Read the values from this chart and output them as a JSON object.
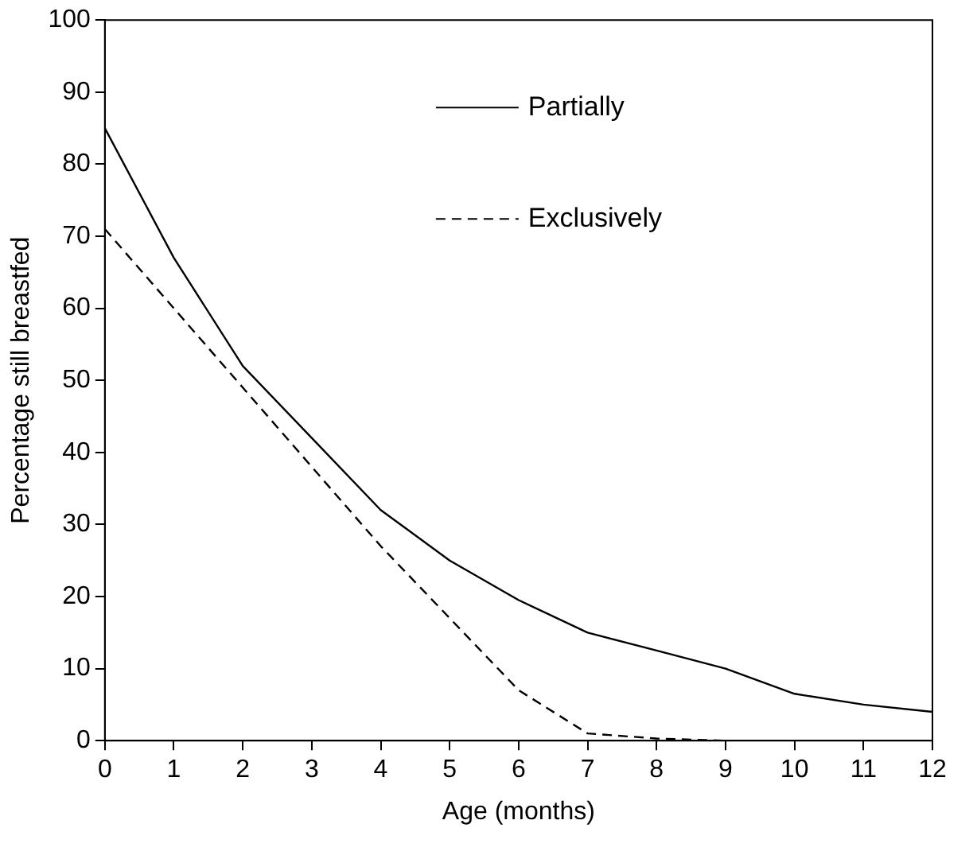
{
  "chart_data": {
    "type": "line",
    "xlabel": "Age (months)",
    "ylabel": "Percentage still breastfed",
    "x": [
      0,
      1,
      2,
      3,
      4,
      5,
      6,
      7,
      8,
      9,
      10,
      11,
      12
    ],
    "series": [
      {
        "name": "Partially",
        "color": "#000000",
        "line_style": "solid",
        "values": [
          85,
          67,
          52,
          42,
          32,
          25,
          19.5,
          15,
          12.5,
          10,
          6.5,
          5,
          4
        ]
      },
      {
        "name": "Exclusively",
        "color": "#000000",
        "line_style": "dashed",
        "values": [
          71,
          60,
          49,
          38,
          27,
          17,
          7,
          1,
          0.3,
          0,
          0,
          0,
          0
        ]
      }
    ],
    "xlim": [
      0,
      12
    ],
    "xticks": [
      0,
      1,
      2,
      3,
      4,
      5,
      6,
      7,
      8,
      9,
      10,
      11,
      12
    ],
    "ylim": [
      0,
      100
    ],
    "yticks": [
      0,
      10,
      20,
      30,
      40,
      50,
      60,
      70,
      80,
      90,
      100
    ],
    "grid": false,
    "legend": "top right",
    "marker": "none"
  }
}
